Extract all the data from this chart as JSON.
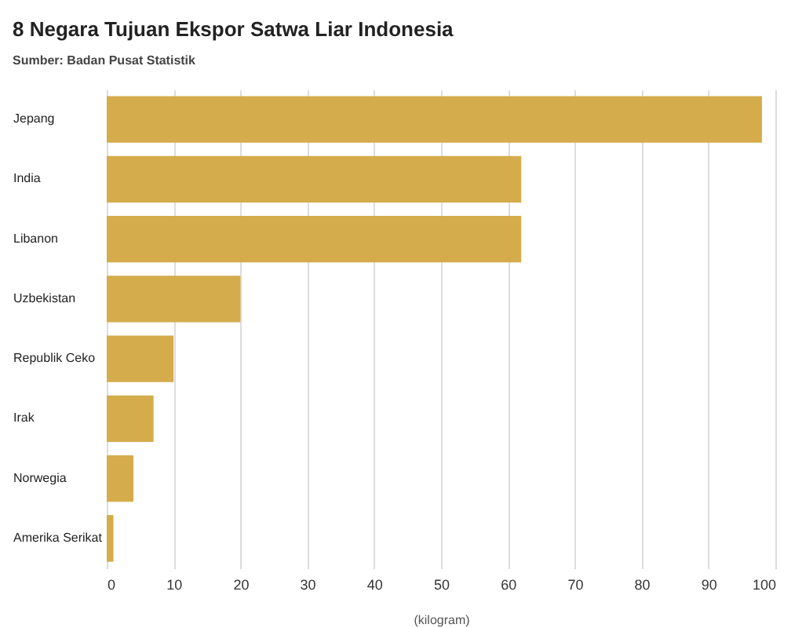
{
  "chart_data": {
    "type": "bar",
    "orientation": "horizontal",
    "title": "8 Negara Tujuan Ekspor Satwa Liar Indonesia",
    "subtitle": "Sumber: Badan Pusat Statistik",
    "xlabel": "(kilogram)",
    "categories": [
      "Jepang",
      "India",
      "Libanon",
      "Uzbekistan",
      "Republik Ceko",
      "Irak",
      "Norwegia",
      "Amerika Serikat"
    ],
    "values": [
      98,
      62,
      62,
      20,
      10,
      7,
      4,
      1
    ],
    "color": "#d4ac4c",
    "xlim": [
      0,
      100
    ],
    "xticks": [
      0,
      10,
      20,
      30,
      40,
      50,
      60,
      70,
      80,
      90,
      100
    ],
    "grid": "x"
  }
}
